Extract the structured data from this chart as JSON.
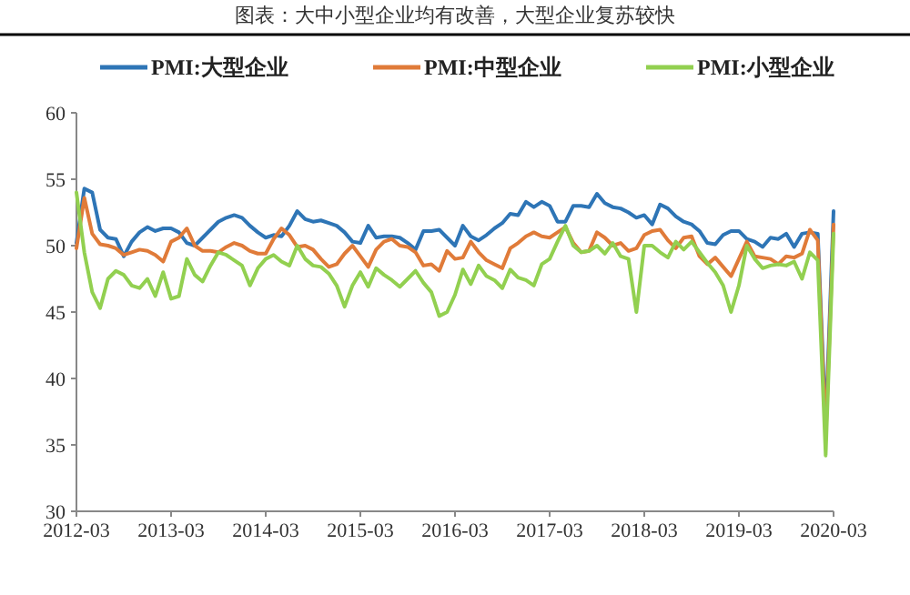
{
  "chart_data": {
    "type": "line",
    "title": "图表：大中小型企业均有改善，大型企业复苏较快",
    "x": [
      "2012-03",
      "2012-04",
      "2012-05",
      "2012-06",
      "2012-07",
      "2012-08",
      "2012-09",
      "2012-10",
      "2012-11",
      "2012-12",
      "2013-01",
      "2013-02",
      "2013-03",
      "2013-04",
      "2013-05",
      "2013-06",
      "2013-07",
      "2013-08",
      "2013-09",
      "2013-10",
      "2013-11",
      "2013-12",
      "2014-01",
      "2014-02",
      "2014-03",
      "2014-04",
      "2014-05",
      "2014-06",
      "2014-07",
      "2014-08",
      "2014-09",
      "2014-10",
      "2014-11",
      "2014-12",
      "2015-01",
      "2015-02",
      "2015-03",
      "2015-04",
      "2015-05",
      "2015-06",
      "2015-07",
      "2015-08",
      "2015-09",
      "2015-10",
      "2015-11",
      "2015-12",
      "2016-01",
      "2016-02",
      "2016-03",
      "2016-04",
      "2016-05",
      "2016-06",
      "2016-07",
      "2016-08",
      "2016-09",
      "2016-10",
      "2016-11",
      "2016-12",
      "2017-01",
      "2017-02",
      "2017-03",
      "2017-04",
      "2017-05",
      "2017-06",
      "2017-07",
      "2017-08",
      "2017-09",
      "2017-10",
      "2017-11",
      "2017-12",
      "2018-01",
      "2018-02",
      "2018-03",
      "2018-04",
      "2018-05",
      "2018-06",
      "2018-07",
      "2018-08",
      "2018-09",
      "2018-10",
      "2018-11",
      "2018-12",
      "2019-01",
      "2019-02",
      "2019-03",
      "2019-04",
      "2019-05",
      "2019-06",
      "2019-07",
      "2019-08",
      "2019-09",
      "2019-10",
      "2019-11",
      "2019-12",
      "2020-01",
      "2020-02",
      "2020-03"
    ],
    "series": [
      {
        "name": "PMI:大型企业",
        "color": "#2e75b6",
        "values": [
          50.2,
          54.3,
          54.0,
          51.2,
          50.6,
          50.5,
          49.2,
          50.3,
          51.0,
          51.4,
          51.1,
          51.3,
          51.3,
          51.0,
          50.2,
          50.0,
          50.6,
          51.2,
          51.8,
          52.1,
          52.3,
          52.1,
          51.5,
          51.0,
          50.6,
          50.8,
          50.7,
          51.5,
          52.6,
          52.0,
          51.8,
          51.9,
          51.7,
          51.5,
          51.0,
          50.3,
          50.2,
          51.5,
          50.6,
          50.7,
          50.7,
          50.6,
          50.2,
          49.7,
          51.1,
          51.1,
          51.2,
          50.6,
          50.0,
          51.5,
          50.7,
          50.4,
          50.8,
          51.3,
          51.7,
          52.4,
          52.3,
          53.3,
          52.9,
          53.3,
          53.0,
          51.8,
          51.8,
          53.0,
          53.0,
          52.9,
          53.9,
          53.2,
          52.9,
          52.8,
          52.5,
          52.1,
          52.3,
          51.6,
          53.1,
          52.8,
          52.2,
          51.8,
          51.6,
          51.1,
          50.2,
          50.1,
          50.8,
          51.1,
          51.1,
          50.5,
          50.3,
          49.9,
          50.6,
          50.5,
          50.9,
          49.9,
          50.9,
          51.0,
          50.9,
          36.4,
          52.6
        ]
      },
      {
        "name": "PMI:中型企业",
        "color": "#e07b39",
        "values": [
          49.8,
          53.6,
          50.9,
          50.1,
          50.0,
          49.8,
          49.3,
          49.5,
          49.7,
          49.6,
          49.3,
          48.8,
          50.3,
          50.6,
          51.3,
          50.0,
          49.6,
          49.6,
          49.5,
          49.9,
          50.2,
          50.0,
          49.6,
          49.4,
          49.4,
          50.5,
          51.3,
          50.8,
          49.9,
          50.0,
          49.7,
          49.0,
          48.4,
          48.6,
          49.4,
          50.0,
          49.2,
          48.4,
          49.7,
          50.3,
          50.5,
          50.0,
          49.9,
          49.5,
          48.5,
          48.6,
          48.1,
          49.6,
          49.0,
          49.1,
          50.3,
          49.5,
          48.9,
          48.6,
          48.3,
          49.8,
          50.2,
          50.7,
          51.0,
          50.7,
          50.6,
          51.0,
          51.4,
          50.2,
          49.5,
          49.6,
          51.0,
          50.6,
          50.0,
          50.2,
          49.6,
          49.8,
          50.8,
          51.1,
          51.2,
          50.4,
          49.8,
          50.6,
          50.7,
          49.2,
          48.6,
          49.1,
          48.4,
          47.7,
          49.0,
          50.3,
          49.2,
          49.1,
          49.0,
          48.6,
          49.2,
          49.1,
          49.4,
          51.2,
          50.4,
          35.5,
          51.6
        ]
      },
      {
        "name": "PMI:小型企业",
        "color": "#92d050",
        "values": [
          54.0,
          49.5,
          46.5,
          45.3,
          47.5,
          48.1,
          47.8,
          47.0,
          46.8,
          47.5,
          46.2,
          48.0,
          46.0,
          46.2,
          49.0,
          47.8,
          47.3,
          48.5,
          49.5,
          49.3,
          48.9,
          48.5,
          47.0,
          48.3,
          49.0,
          49.3,
          48.8,
          48.5,
          50.0,
          49.0,
          48.5,
          48.4,
          47.9,
          47.0,
          45.4,
          47.0,
          48.0,
          46.9,
          48.3,
          47.8,
          47.4,
          46.9,
          47.5,
          48.1,
          47.2,
          46.5,
          44.7,
          45.0,
          46.3,
          48.2,
          47.1,
          48.5,
          47.7,
          47.4,
          46.8,
          48.2,
          47.6,
          47.4,
          47.0,
          48.6,
          49.0,
          50.3,
          51.5,
          50.0,
          49.5,
          49.6,
          50.0,
          49.4,
          50.2,
          49.2,
          49.0,
          45.0,
          50.0,
          50.0,
          49.5,
          49.1,
          50.3,
          49.7,
          50.3,
          49.5,
          48.7,
          48.0,
          47.0,
          45.0,
          47.0,
          50.0,
          49.0,
          48.3,
          48.5,
          48.6,
          48.5,
          48.8,
          47.5,
          49.5,
          48.9,
          34.2,
          50.9
        ]
      }
    ],
    "xlim": [
      "2012-03",
      "2020-03"
    ],
    "xticks": [
      "2012-03",
      "2013-03",
      "2014-03",
      "2015-03",
      "2016-03",
      "2017-03",
      "2018-03",
      "2019-03",
      "2020-03"
    ],
    "ylim": [
      30,
      60
    ],
    "yticks": [
      30,
      35,
      40,
      45,
      50,
      55,
      60
    ],
    "grid": false,
    "legend": "top",
    "marker": "none",
    "line_style": "solid"
  }
}
